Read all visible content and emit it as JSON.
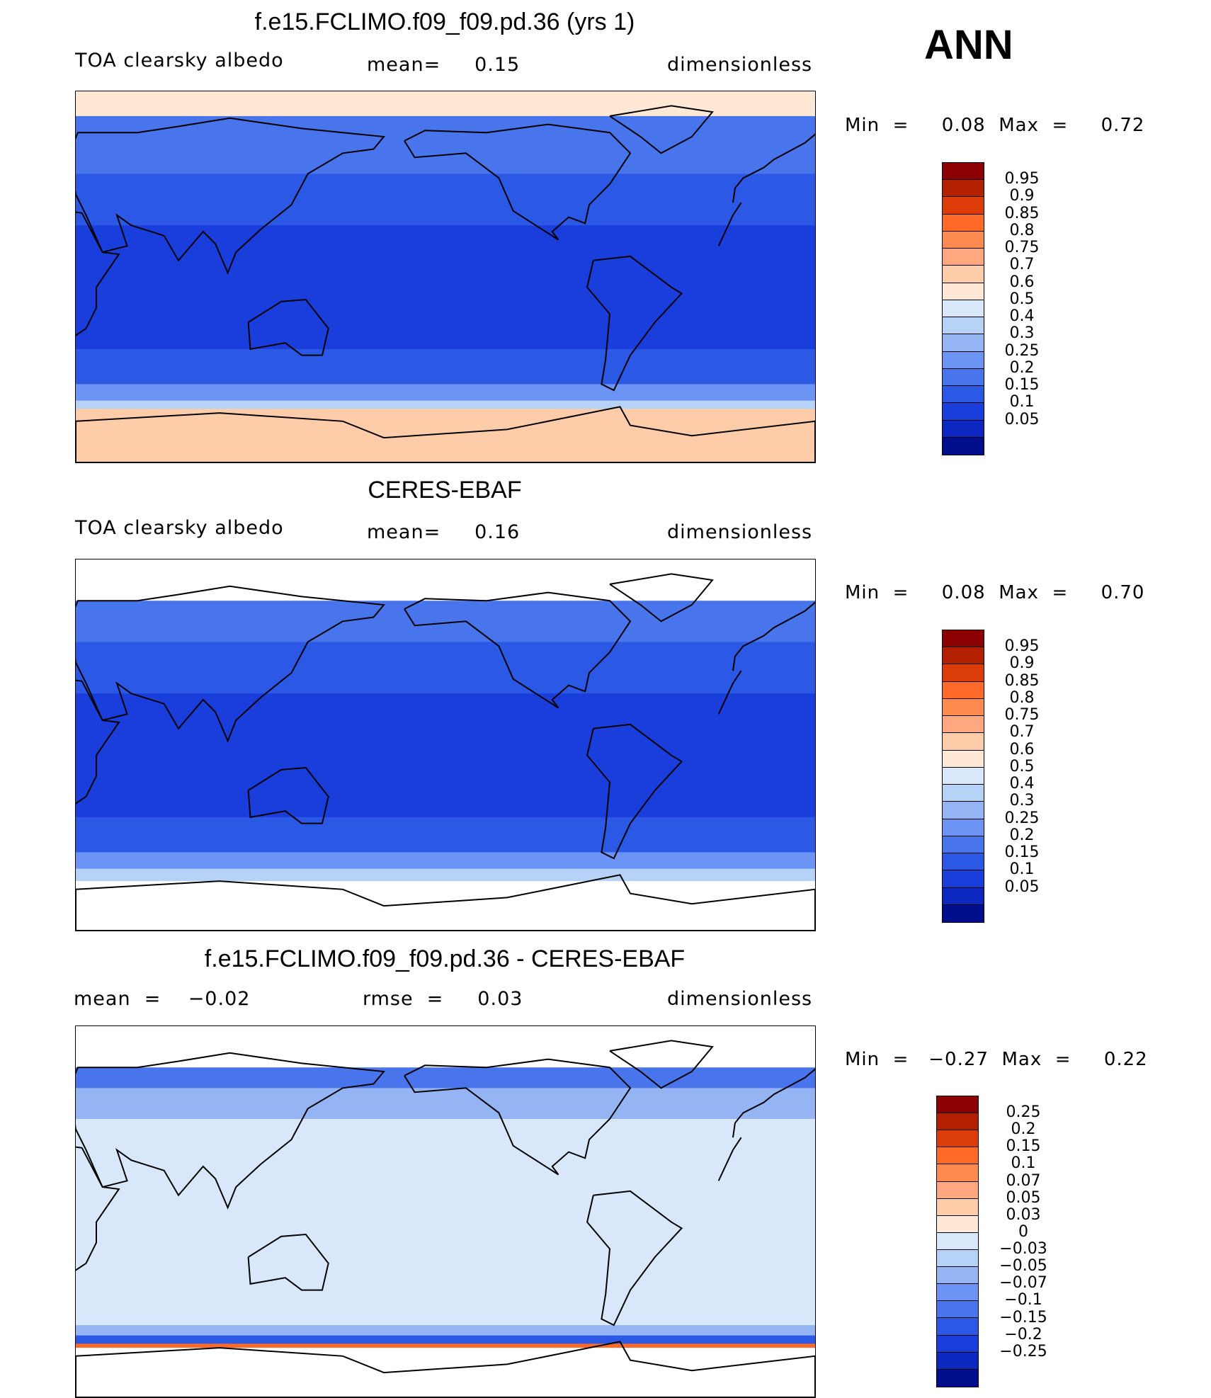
{
  "season_label": "ANN",
  "palettes": {
    "abs": [
      "#8b0000",
      "#b22000",
      "#dc3c0a",
      "#ff6a28",
      "#ff8a50",
      "#ffa880",
      "#ffccaa",
      "#ffe8d6",
      "#d8e8fa",
      "#b6d2f6",
      "#94b4f4",
      "#6c94f4",
      "#4874ec",
      "#2c58e6",
      "#1a3edc",
      "#0c28c0",
      "#000e8c"
    ],
    "diff": [
      "#8b0000",
      "#b22000",
      "#dc3c0a",
      "#ff6a28",
      "#ff8a50",
      "#ffa880",
      "#ffccaa",
      "#ffe8d6",
      "#d8e8fa",
      "#b6d2f6",
      "#94b4f4",
      "#6c94f4",
      "#4874ec",
      "#2c58e6",
      "#1a3edc",
      "#0c28c0",
      "#000e8c"
    ]
  },
  "panels": [
    {
      "title": "f.e15.FCLIMO.f09_f09.pd.36 (yrs 1)",
      "left_label": "TOA clearsky albedo",
      "mid_label": "mean=     0.15",
      "units": "dimensionless",
      "minmax": "Min  =     0.08  Max  =     0.72",
      "colorbar_ticks": [
        "0.95",
        "0.9",
        "0.85",
        "0.8",
        "0.75",
        "0.7",
        "0.6",
        "0.5",
        "0.4",
        "0.3",
        "0.25",
        "0.2",
        "0.15",
        "0.1",
        "0.05"
      ],
      "bands": [
        {
          "lat": 90,
          "color": "#ffe8d6"
        },
        {
          "lat": 78,
          "color": "#4874ec"
        },
        {
          "lat": 50,
          "color": "#2c58e6"
        },
        {
          "lat": 25,
          "color": "#1a3edc"
        },
        {
          "lat": -35,
          "color": "#2c58e6"
        },
        {
          "lat": -52,
          "color": "#6c94f4"
        },
        {
          "lat": -60,
          "color": "#b6d2f6"
        },
        {
          "lat": -64,
          "color": "#ffccaa"
        }
      ]
    },
    {
      "title": "CERES-EBAF",
      "left_label": "TOA clearsky albedo",
      "mid_label": "mean=     0.16",
      "units": "dimensionless",
      "minmax": "Min  =     0.08  Max  =     0.70",
      "colorbar_ticks": [
        "0.95",
        "0.9",
        "0.85",
        "0.8",
        "0.75",
        "0.7",
        "0.6",
        "0.5",
        "0.4",
        "0.3",
        "0.25",
        "0.2",
        "0.15",
        "0.1",
        "0.05"
      ],
      "bands": [
        {
          "lat": 90,
          "color": "#ffffff"
        },
        {
          "lat": 70,
          "color": "#4874ec"
        },
        {
          "lat": 50,
          "color": "#2c58e6"
        },
        {
          "lat": 25,
          "color": "#1a3edc"
        },
        {
          "lat": -35,
          "color": "#2c58e6"
        },
        {
          "lat": -52,
          "color": "#6c94f4"
        },
        {
          "lat": -60,
          "color": "#b6d2f6"
        },
        {
          "lat": -66,
          "color": "#ffffff"
        }
      ]
    },
    {
      "title": "f.e15.FCLIMO.f09_f09.pd.36 - CERES-EBAF",
      "left_label": "mean  =    −0.02",
      "mid_label": "rmse  =     0.03",
      "units": "dimensionless",
      "minmax": "Min  =   −0.27  Max  =     0.22",
      "colorbar_ticks": [
        "0.25",
        "0.2",
        "0.15",
        "0.1",
        "0.07",
        "0.05",
        "0.03",
        "0",
        "−0.03",
        "−0.05",
        "−0.07",
        "−0.1",
        "−0.15",
        "−0.2",
        "−0.25"
      ],
      "bands": [
        {
          "lat": 90,
          "color": "#ffffff"
        },
        {
          "lat": 70,
          "color": "#4874ec"
        },
        {
          "lat": 60,
          "color": "#94b4f4"
        },
        {
          "lat": 45,
          "color": "#d8e8fa"
        },
        {
          "lat": -55,
          "color": "#94b4f4"
        },
        {
          "lat": -60,
          "color": "#2c58e6"
        },
        {
          "lat": -64,
          "color": "#ff6a28"
        },
        {
          "lat": -66,
          "color": "#ffffff"
        }
      ]
    }
  ]
}
